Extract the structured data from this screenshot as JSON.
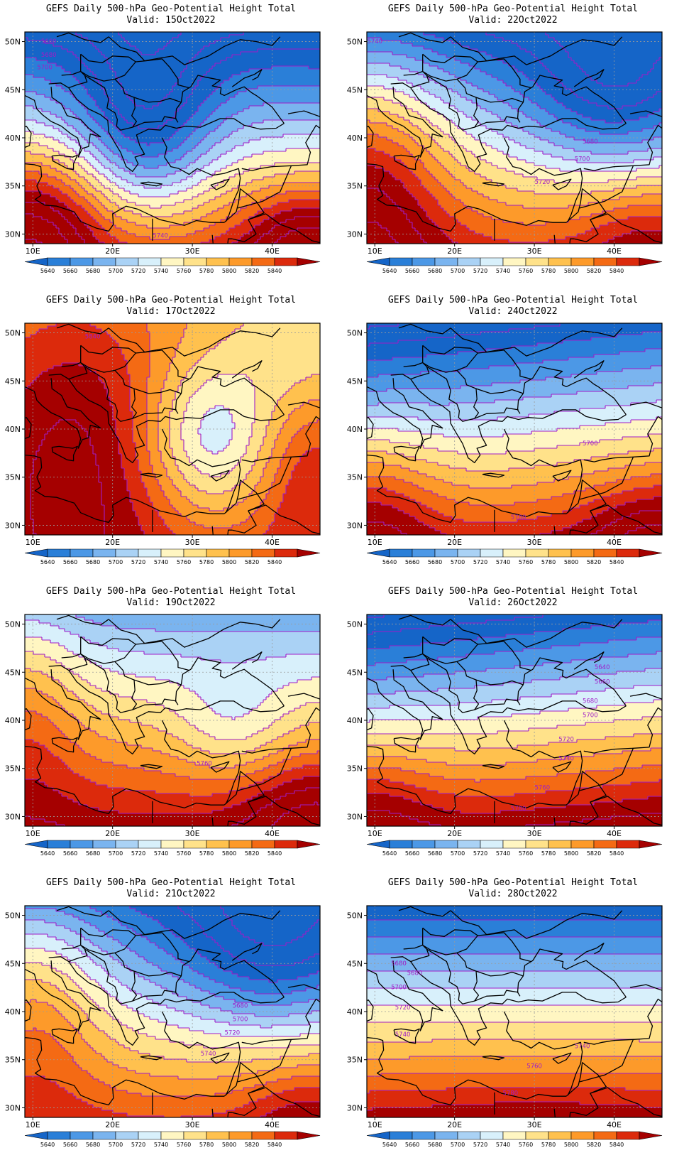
{
  "figure": {
    "title_prefix": "GEFS Daily 500-hPa Geo-Potential Height Total",
    "valid_prefix": "Valid:"
  },
  "axes": {
    "lat_labels": [
      "50N",
      "45N",
      "40N",
      "35N",
      "30N"
    ],
    "lat_values": [
      50,
      45,
      40,
      35,
      30
    ],
    "lon_labels": [
      "10E",
      "20E",
      "30E",
      "40E"
    ],
    "lon_values": [
      10,
      20,
      30,
      40
    ],
    "lon_range": [
      9,
      46
    ],
    "lat_range": [
      29,
      51
    ]
  },
  "colorbar": {
    "labels": [
      "5640",
      "5660",
      "5680",
      "5700",
      "5720",
      "5740",
      "5760",
      "5780",
      "5800",
      "5820",
      "5840"
    ],
    "colors": [
      "#1565c8",
      "#2a7fd8",
      "#4c98e6",
      "#7ab4ef",
      "#aad2f5",
      "#d8f0fb",
      "#fff6c2",
      "#ffe28a",
      "#ffc14e",
      "#fd9a2a",
      "#f46a14",
      "#dc2a0c",
      "#a50000"
    ]
  },
  "contour_color": "#a01cc8",
  "panels": [
    {
      "date": "15Oct2022",
      "labels": [
        {
          "text": "5660",
          "lon": 12,
          "lat": 50
        },
        {
          "text": "5680",
          "lon": 12,
          "lat": 48.6
        },
        {
          "text": "5700",
          "lon": 11.5,
          "lat": 47.3
        },
        {
          "text": "5740",
          "lon": 26,
          "lat": 29.8
        }
      ]
    },
    {
      "date": "22Oct2022",
      "labels": [
        {
          "text": "5740",
          "lon": 10,
          "lat": 50
        },
        {
          "text": "5680",
          "lon": 37,
          "lat": 39.6
        },
        {
          "text": "5700",
          "lon": 36,
          "lat": 37.8
        },
        {
          "text": "5720",
          "lon": 31,
          "lat": 35.4
        }
      ]
    },
    {
      "date": "17Oct2022",
      "labels": [
        {
          "text": "5840",
          "lon": 17.5,
          "lat": 49.6
        }
      ]
    },
    {
      "date": "24Oct2022",
      "labels": [
        {
          "text": "5700",
          "lon": 37,
          "lat": 38.5
        },
        {
          "text": "5780",
          "lon": 28,
          "lat": 30.8
        }
      ]
    },
    {
      "date": "19Oct2022",
      "labels": [
        {
          "text": "5760",
          "lon": 31.5,
          "lat": 35.5
        }
      ]
    },
    {
      "date": "26Oct2022",
      "labels": [
        {
          "text": "5640",
          "lon": 38.5,
          "lat": 45.5
        },
        {
          "text": "5660",
          "lon": 38.5,
          "lat": 44
        },
        {
          "text": "5680",
          "lon": 37,
          "lat": 42
        },
        {
          "text": "5700",
          "lon": 37,
          "lat": 40.5
        },
        {
          "text": "5720",
          "lon": 34,
          "lat": 38
        },
        {
          "text": "5740",
          "lon": 34,
          "lat": 36
        },
        {
          "text": "5760",
          "lon": 31,
          "lat": 33
        },
        {
          "text": "5780",
          "lon": 28,
          "lat": 30.8
        }
      ]
    },
    {
      "date": "21Oct2022",
      "labels": [
        {
          "text": "5680",
          "lon": 36,
          "lat": 40.6
        },
        {
          "text": "5700",
          "lon": 36,
          "lat": 39.2
        },
        {
          "text": "5720",
          "lon": 35,
          "lat": 37.8
        },
        {
          "text": "5740",
          "lon": 32,
          "lat": 35.6
        }
      ]
    },
    {
      "date": "28Oct2022",
      "labels": [
        {
          "text": "5680",
          "lon": 13,
          "lat": 45
        },
        {
          "text": "5680",
          "lon": 15,
          "lat": 44
        },
        {
          "text": "5700",
          "lon": 13,
          "lat": 42.5
        },
        {
          "text": "5720",
          "lon": 13.5,
          "lat": 40.4
        },
        {
          "text": "5740",
          "lon": 13.5,
          "lat": 37.6
        },
        {
          "text": "5740",
          "lon": 36,
          "lat": 36.4
        },
        {
          "text": "5760",
          "lon": 30,
          "lat": 34.3
        },
        {
          "text": "5780",
          "lon": 27,
          "lat": 31.5
        }
      ]
    }
  ]
}
